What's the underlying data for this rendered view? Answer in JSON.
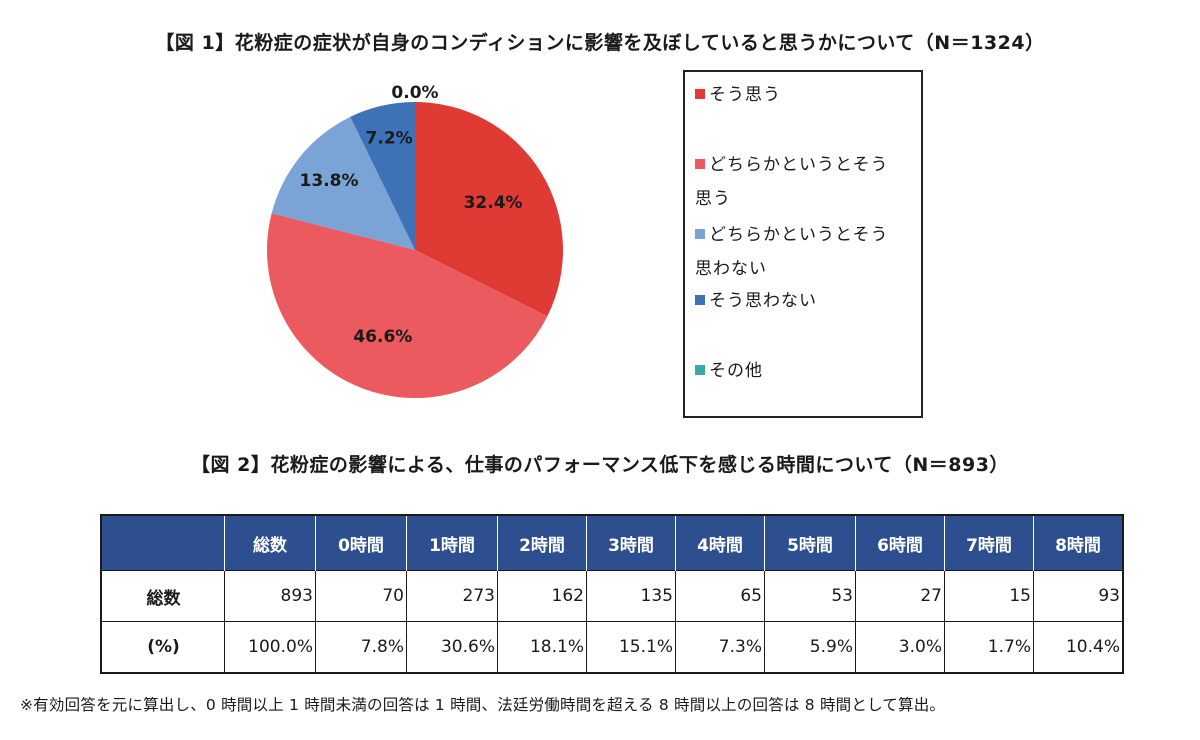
{
  "figure1": {
    "title": "【図 1】花粉症の症状が自身のコンディションに影響を及ぼしていると思うかについて（N＝1324）"
  },
  "figure2": {
    "title": "【図 2】花粉症の影響による、仕事のパフォーマンス低下を感じる時間について（N＝893）"
  },
  "chart_data": [
    {
      "type": "pie",
      "title": "【図 1】花粉症の症状が自身のコンディションに影響を及ぼしていると思うかについて（N＝1324）",
      "categories": [
        "そう思う",
        "どちらかというとそう思う",
        "どちらかというとそう思わない",
        "そう思わない",
        "その他"
      ],
      "values": [
        32.4,
        46.6,
        13.8,
        7.2,
        0.0
      ],
      "labels": [
        "32.4%",
        "46.6%",
        "13.8%",
        "7.2%",
        "0.0%"
      ],
      "colors": [
        "#e03a34",
        "#ea5a5e",
        "#7aa3d6",
        "#3e72b6",
        "#3aa7a8"
      ],
      "legend_placement": "right",
      "legend": [
        {
          "lines": [
            "そう思う"
          ],
          "color": "#e03a34"
        },
        {
          "lines": [
            "どちらかというとそう",
            "思う"
          ],
          "color": "#ea5a5e"
        },
        {
          "lines": [
            "どちらかというとそう",
            "思わない"
          ],
          "color": "#7aa3d6"
        },
        {
          "lines": [
            "そう思わない"
          ],
          "color": "#3e72b6"
        },
        {
          "lines": [
            "その他"
          ],
          "color": "#3aa7a8"
        }
      ]
    },
    {
      "type": "table",
      "title": "【図 2】花粉症の影響による、仕事のパフォーマンス低下を感じる時間について（N＝893）",
      "columns": [
        "",
        "総数",
        "0時間",
        "1時間",
        "2時間",
        "3時間",
        "4時間",
        "5時間",
        "6時間",
        "7時間",
        "8時間"
      ],
      "rows": [
        [
          "総数",
          "893",
          "70",
          "273",
          "162",
          "135",
          "65",
          "53",
          "27",
          "15",
          "93"
        ],
        [
          "(%)",
          "100.0%",
          "7.8%",
          "30.6%",
          "18.1%",
          "15.1%",
          "7.3%",
          "5.9%",
          "3.0%",
          "1.7%",
          "10.4%"
        ]
      ],
      "header_color": "#2e4f8f"
    }
  ],
  "note": "※有効回答を元に算出し、0 時間以上 1 時間未満の回答は 1 時間、法廷労働時間を超える 8 時間以上の回答は 8 時間として算出。"
}
